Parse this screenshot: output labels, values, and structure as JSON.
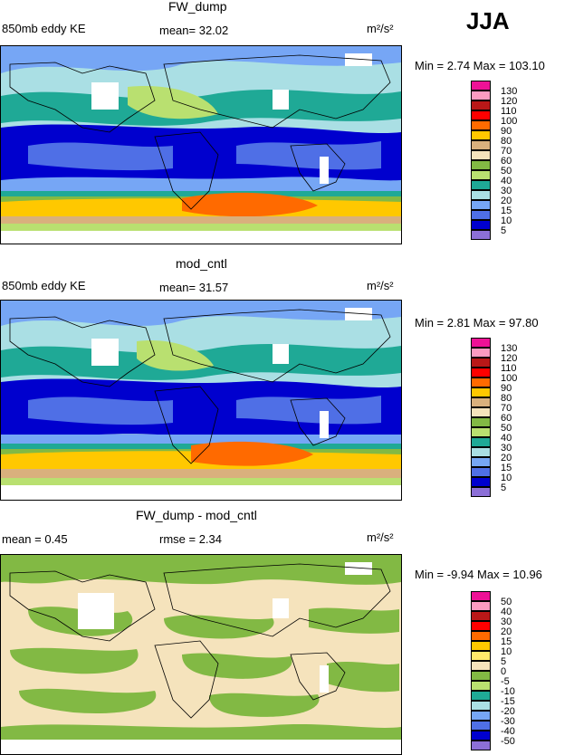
{
  "season": "JJA",
  "units": "m²/s²",
  "panels": [
    {
      "title": "FW_dump",
      "left_text": "850mb eddy KE",
      "center_text": "mean=  32.02",
      "minmax": "Min =    2.74  Max  =  103.10"
    },
    {
      "title": "mod_cntl",
      "left_text": "850mb eddy KE",
      "center_text": "mean=  31.57",
      "minmax": "Min =    2.81  Max  =   97.80"
    },
    {
      "title": "FW_dump - mod_cntl",
      "left_text": "mean =    0.45",
      "center_text": "rmse =    2.34",
      "minmax": "Min =   -9.94  Max  =  10.96"
    }
  ],
  "chart_data": [
    {
      "type": "heatmap",
      "title": "FW_dump",
      "subtitle": "850mb eddy KE",
      "mean": 32.02,
      "min": 2.74,
      "max": 103.1,
      "units": "m2/s2",
      "legend_levels": [
        "130",
        "120",
        "110",
        "100",
        "90",
        "80",
        "70",
        "60",
        "50",
        "40",
        "30",
        "20",
        "15",
        "10",
        "5"
      ],
      "legend_colors": [
        "#ee1196",
        "#fc9bc1",
        "#b91818",
        "#ff0000",
        "#ff6a00",
        "#ffc800",
        "#d9b07d",
        "#f5e3bc",
        "#82b944",
        "#b9e070",
        "#1fa996",
        "#aadfe4",
        "#76a6f5",
        "#4f6fe6",
        "#0000ce",
        "#8c6fd7"
      ]
    },
    {
      "type": "heatmap",
      "title": "mod_cntl",
      "subtitle": "850mb eddy KE",
      "mean": 31.57,
      "min": 2.81,
      "max": 97.8,
      "units": "m2/s2",
      "legend_levels": [
        "130",
        "120",
        "110",
        "100",
        "90",
        "80",
        "70",
        "60",
        "50",
        "40",
        "30",
        "20",
        "15",
        "10",
        "5"
      ],
      "legend_colors": [
        "#ee1196",
        "#fc9bc1",
        "#b91818",
        "#ff0000",
        "#ff6a00",
        "#ffc800",
        "#d9b07d",
        "#f5e3bc",
        "#82b944",
        "#b9e070",
        "#1fa996",
        "#aadfe4",
        "#76a6f5",
        "#4f6fe6",
        "#0000ce",
        "#8c6fd7"
      ]
    },
    {
      "type": "heatmap",
      "title": "FW_dump - mod_cntl",
      "mean": 0.45,
      "rmse": 2.34,
      "min": -9.94,
      "max": 10.96,
      "units": "m2/s2",
      "legend_levels": [
        "50",
        "40",
        "30",
        "20",
        "15",
        "10",
        "5",
        "0",
        "-5",
        "-10",
        "-15",
        "-20",
        "-30",
        "-40",
        "-50"
      ],
      "legend_colors": [
        "#ee1196",
        "#fc9bc1",
        "#b91818",
        "#ff0000",
        "#ff6a00",
        "#ffc800",
        "#ffe96b",
        "#f5e3bc",
        "#82b944",
        "#b9e070",
        "#1fa996",
        "#aadfe4",
        "#76a6f5",
        "#4f6fe6",
        "#0000ce",
        "#8c6fd7"
      ]
    }
  ]
}
